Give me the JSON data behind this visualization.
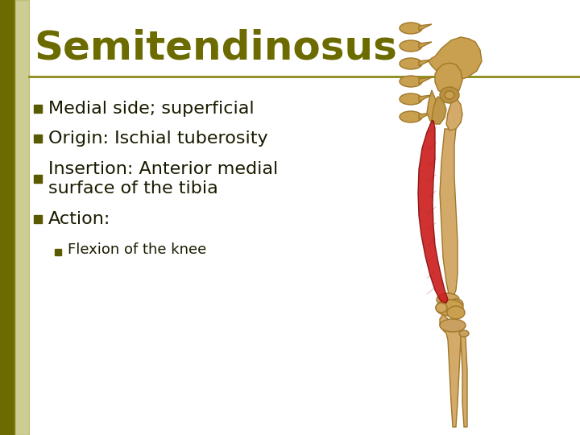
{
  "title": "Semitendinosus",
  "title_color": "#6b6b00",
  "title_fontsize": 36,
  "title_weight": "bold",
  "bg_color": "#ffffff",
  "left_bar_color": "#8b8b1a",
  "divider_color": "#8b8b1a",
  "bullet_color": "#5a5a00",
  "text_color": "#1a1a00",
  "bullet_items": [
    "Medial side; superficial",
    "Origin: Ischial tuberosity",
    "Insertion: Anterior medial\nsurface of the tibia",
    "Action:"
  ],
  "sub_bullet_items": [
    "Flexion of the knee"
  ],
  "body_fontsize": 16,
  "sub_fontsize": 13,
  "bone_face": "#d4aa6a",
  "bone_edge": "#a07828",
  "muscle_face": "#cc2020",
  "muscle_edge": "#881010"
}
